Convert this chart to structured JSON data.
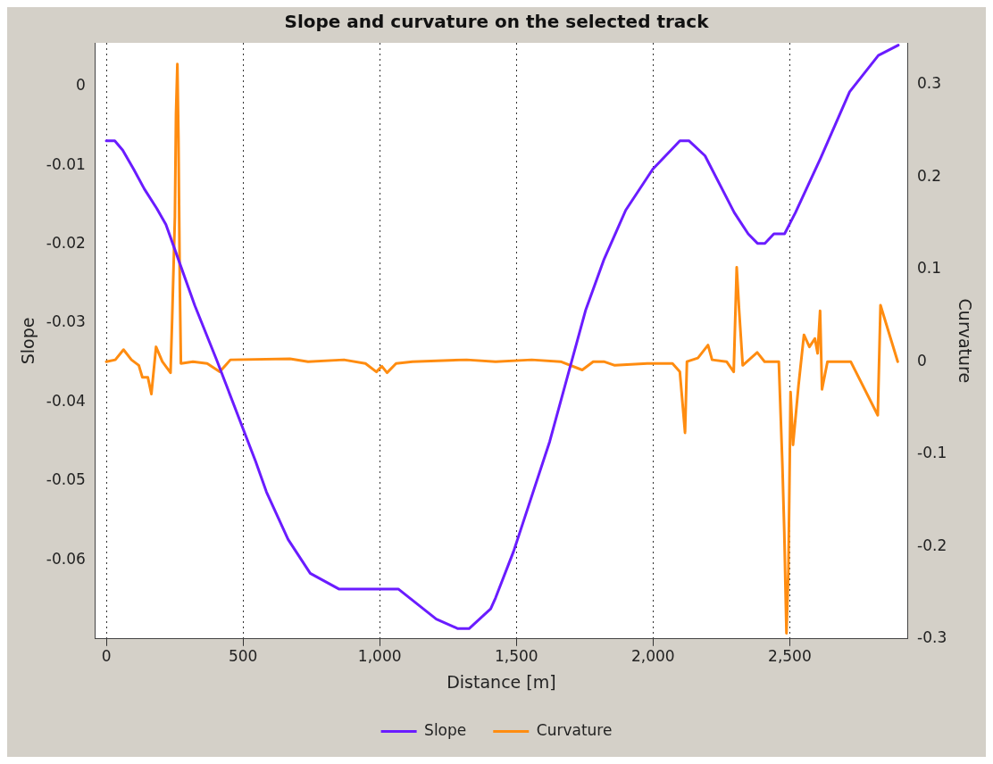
{
  "chart_data": {
    "type": "line",
    "title": "Slope and curvature on the selected track",
    "xlabel": "Distance [m]",
    "ylabel": "Slope",
    "y2label": "Curvature",
    "xlim": [
      -40,
      2930
    ],
    "xticks": [
      0,
      500,
      {
        "value": 1000,
        "label": "1,000"
      },
      {
        "value": 1500,
        "label": "1,500"
      },
      {
        "value": 2000,
        "label": "2,000"
      },
      {
        "value": 2500,
        "label": "2,500"
      }
    ],
    "ylim": [
      -0.07,
      0.0055
    ],
    "yticks": [
      0,
      -0.01,
      -0.02,
      -0.03,
      -0.04,
      -0.05,
      -0.06
    ],
    "y2lim": [
      -0.3,
      0.345
    ],
    "y2ticks": [
      0.3,
      0.2,
      0.1,
      0,
      -0.1,
      -0.2,
      -0.3
    ],
    "grid": "x",
    "legend": "bottom",
    "marker": "none",
    "line_style": "solid",
    "series": [
      {
        "name": "Slope",
        "color": "#6a1cff",
        "x": [
          0,
          31,
          60,
          100,
          139,
          185,
          218,
          252,
          324,
          403,
          496,
          546,
          586,
          665,
          746,
          852,
          1069,
          1207,
          1286,
          1327,
          1406,
          1424,
          1490,
          1622,
          1754,
          1821,
          1900,
          1999,
          2071,
          2098,
          2131,
          2190,
          2297,
          2348,
          2382,
          2409,
          2442,
          2481,
          2521,
          2613,
          2719,
          2824,
          2897
        ],
        "values": [
          -0.0069,
          -0.0069,
          -0.0081,
          -0.0105,
          -0.013,
          -0.0155,
          -0.0175,
          -0.0208,
          -0.0278,
          -0.0346,
          -0.043,
          -0.0475,
          -0.0514,
          -0.0574,
          -0.0617,
          -0.0637,
          -0.0637,
          -0.0675,
          -0.0687,
          -0.0687,
          -0.0662,
          -0.0648,
          -0.0589,
          -0.045,
          -0.0283,
          -0.0219,
          -0.0157,
          -0.0105,
          -0.0079,
          -0.0069,
          -0.0069,
          -0.0088,
          -0.016,
          -0.0187,
          -0.0199,
          -0.0199,
          -0.0187,
          -0.0187,
          -0.016,
          -0.0091,
          -0.0007,
          0.0039,
          0.0052
        ]
      },
      {
        "name": "Curvature",
        "color": "#ff8c10",
        "axis": "y2",
        "x": [
          0,
          33,
          63,
          92,
          119,
          132,
          152,
          165,
          182,
          205,
          235,
          241,
          251,
          255,
          260,
          264,
          269,
          273,
          317,
          369,
          415,
          454,
          672,
          738,
          869,
          948,
          988,
          1008,
          1027,
          1060,
          1120,
          1318,
          1424,
          1556,
          1662,
          1741,
          1781,
          1820,
          1860,
          1979,
          2071,
          2098,
          2117,
          2124,
          2164,
          2201,
          2216,
          2269,
          2295,
          2306,
          2315,
          2328,
          2381,
          2408,
          2460,
          2473,
          2480,
          2488,
          2495,
          2503,
          2512,
          2532,
          2552,
          2572,
          2592,
          2602,
          2611,
          2618,
          2638,
          2723,
          2822,
          2832,
          2895
        ],
        "values": [
          0,
          0.002,
          0.013,
          0.002,
          -0.004,
          -0.017,
          -0.017,
          -0.035,
          0.016,
          0,
          -0.012,
          0.047,
          0.157,
          0.268,
          0.322,
          0.242,
          0.08,
          -0.002,
          0,
          -0.002,
          -0.011,
          0.002,
          0.003,
          0,
          0.002,
          -0.002,
          -0.011,
          -0.005,
          -0.012,
          -0.002,
          0,
          0.002,
          0,
          0.002,
          0,
          -0.009,
          0,
          0,
          -0.004,
          -0.002,
          -0.002,
          -0.011,
          -0.077,
          0,
          0.004,
          0.018,
          0.002,
          0,
          -0.011,
          0.102,
          0.055,
          -0.004,
          0.01,
          0,
          0,
          -0.111,
          -0.184,
          -0.294,
          -0.226,
          -0.033,
          -0.09,
          -0.026,
          0.029,
          0.016,
          0.025,
          0.009,
          0.055,
          -0.03,
          0,
          0,
          -0.058,
          0.061,
          0
        ]
      }
    ]
  }
}
